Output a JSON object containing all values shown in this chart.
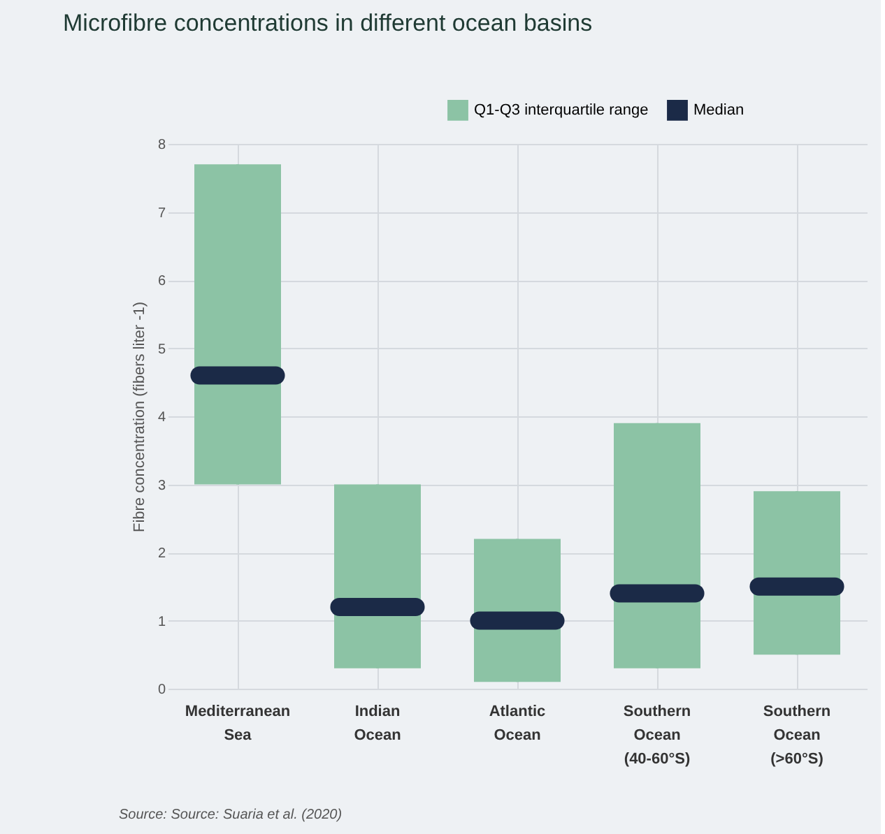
{
  "chart_data": {
    "type": "box",
    "title": "Microfibre concentrations in different ocean basins",
    "ylabel": "Fibre concentration (fibers liter -1)",
    "categories": [
      "Mediterranean\nSea",
      "Indian\nOcean",
      "Atlantic\nOcean",
      "Southern\nOcean\n(40-60°S)",
      "Southern\nOcean\n(>60°S)"
    ],
    "series": [
      {
        "name": "Q1-Q3 interquartile range",
        "color": "#8cc3a5",
        "boxes": [
          {
            "low": 3.0,
            "q1": 3.0,
            "median": 4.6,
            "q3": 7.7,
            "high": 7.7
          },
          {
            "low": 0.3,
            "q1": 0.3,
            "median": 1.2,
            "q3": 3.0,
            "high": 3.0
          },
          {
            "low": 0.1,
            "q1": 0.1,
            "median": 1.0,
            "q3": 2.2,
            "high": 2.2
          },
          {
            "low": 0.3,
            "q1": 0.3,
            "median": 1.4,
            "q3": 3.9,
            "high": 3.9
          },
          {
            "low": 0.5,
            "q1": 0.5,
            "median": 1.5,
            "q3": 2.9,
            "high": 2.9
          }
        ]
      }
    ],
    "legend_title": "Median",
    "colors": [
      "#1b2a47"
    ],
    "ylim": [
      0,
      8
    ],
    "yticks": [
      0,
      1,
      2,
      3,
      4,
      5,
      6,
      7,
      8
    ],
    "grid": true,
    "legend": "top right",
    "annotations": [
      "Source: Source: Suaria et al. (2020)"
    ]
  }
}
